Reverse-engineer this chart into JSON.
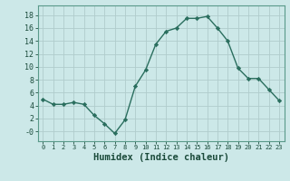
{
  "x": [
    0,
    1,
    2,
    3,
    4,
    5,
    6,
    7,
    8,
    9,
    10,
    11,
    12,
    13,
    14,
    15,
    16,
    17,
    18,
    19,
    20,
    21,
    22,
    23
  ],
  "y": [
    5.0,
    4.2,
    4.2,
    4.5,
    4.2,
    2.5,
    1.2,
    -0.3,
    1.8,
    7.0,
    9.5,
    13.5,
    15.5,
    16.0,
    17.5,
    17.5,
    17.8,
    16.0,
    14.0,
    9.8,
    8.2,
    8.2,
    6.5,
    4.8
  ],
  "line_color": "#2a6e5e",
  "bg_color": "#cce8e8",
  "grid_color": "#b0cccc",
  "xlabel": "Humidex (Indice chaleur)",
  "xlabel_fontsize": 7.5,
  "ylim": [
    -1.5,
    19.5
  ],
  "xlim": [
    -0.5,
    23.5
  ],
  "yticks": [
    0,
    2,
    4,
    6,
    8,
    10,
    12,
    14,
    16,
    18
  ],
  "ytick_labels": [
    "-0",
    "2",
    "4",
    "6",
    "8",
    "10",
    "12",
    "14",
    "16",
    "18"
  ],
  "xtick_labels": [
    "0",
    "1",
    "2",
    "3",
    "4",
    "5",
    "6",
    "7",
    "8",
    "9",
    "10",
    "11",
    "12",
    "13",
    "14",
    "15",
    "16",
    "17",
    "18",
    "19",
    "20",
    "21",
    "22",
    "23"
  ],
  "marker": "D",
  "markersize": 2.2,
  "linewidth": 1.0
}
